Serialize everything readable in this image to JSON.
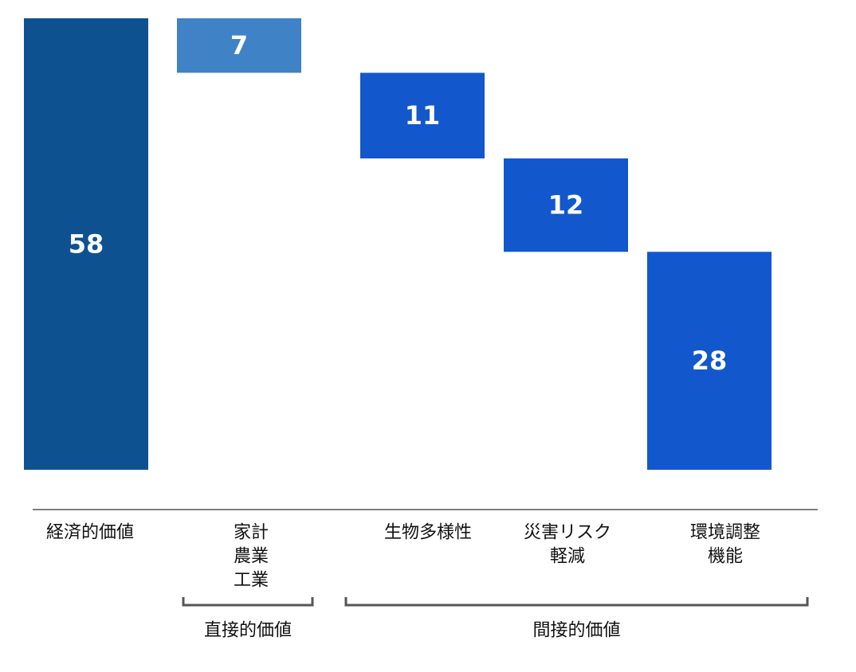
{
  "chart_data": {
    "type": "bar",
    "subtype": "waterfall",
    "title": "",
    "xlabel": "",
    "ylabel": "",
    "grid": false,
    "legend": "none",
    "ylim": [
      0,
      58
    ],
    "categories": [
      [
        "経済的価値"
      ],
      [
        "家計",
        "農業",
        "工業"
      ],
      [
        "生物多様性"
      ],
      [
        "災害リスク",
        "軽減"
      ],
      [
        "環境調整",
        "機能"
      ]
    ],
    "bars": [
      {
        "value": 58,
        "base": 0,
        "label": "58",
        "color": "#0e5191"
      },
      {
        "value": 7,
        "base": 51,
        "label": "7",
        "color": "#3f82c6"
      },
      {
        "value": 11,
        "base": 40,
        "label": "11",
        "color": "#1257cc"
      },
      {
        "value": 12,
        "base": 28,
        "label": "12",
        "color": "#1257cc"
      },
      {
        "value": 28,
        "base": 0,
        "label": "28",
        "color": "#1257cc"
      }
    ],
    "groups": [
      {
        "label": "直接的価値",
        "from": 1,
        "to": 1
      },
      {
        "label": "間接的価値",
        "from": 2,
        "to": 4
      }
    ],
    "colors": {
      "axis": "#7f7f7f",
      "bracket": "#555555"
    }
  }
}
